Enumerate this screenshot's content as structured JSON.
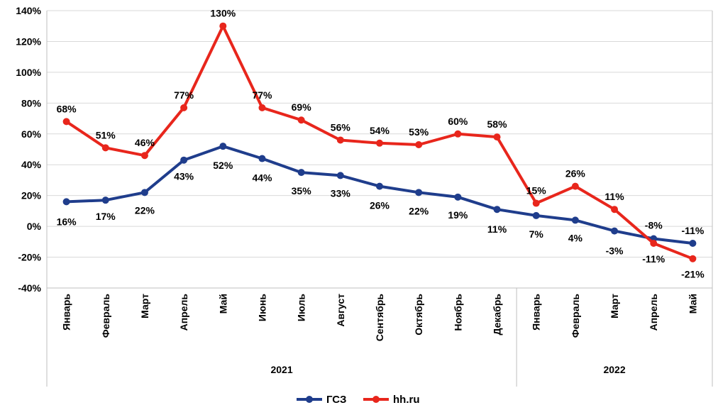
{
  "chart_data": {
    "type": "line",
    "title": "",
    "xlabel": "",
    "ylabel": "",
    "categories": [
      "Январь",
      "Февраль",
      "Март",
      "Апрель",
      "Май",
      "Июнь",
      "Июль",
      "Август",
      "Сентябрь",
      "Октябрь",
      "Ноябрь",
      "Декабрь",
      "Январь",
      "Февраль",
      "Март",
      "Апрель",
      "Май"
    ],
    "groups": [
      {
        "label": "2021",
        "start": 0,
        "end": 11
      },
      {
        "label": "2022",
        "start": 12,
        "end": 16
      }
    ],
    "ylim": [
      -40,
      140
    ],
    "yticks": [
      -40,
      -20,
      0,
      20,
      40,
      60,
      80,
      100,
      120,
      140
    ],
    "ytick_format": "%",
    "grid": true,
    "legend_position": "bottom",
    "series": [
      {
        "name": "ГСЗ",
        "color": "#1f3d8c",
        "values": [
          16,
          17,
          22,
          43,
          52,
          44,
          35,
          33,
          26,
          22,
          19,
          11,
          7,
          4,
          -3,
          -8,
          -11
        ],
        "labels": [
          "16%",
          "17%",
          "22%",
          "43%",
          "52%",
          "44%",
          "35%",
          "33%",
          "26%",
          "22%",
          "19%",
          "11%",
          "7%",
          "4%",
          "-3%",
          "-8%",
          "-11%"
        ]
      },
      {
        "name": "hh.ru",
        "color": "#e8261c",
        "values": [
          68,
          51,
          46,
          77,
          130,
          77,
          69,
          56,
          54,
          53,
          60,
          58,
          15,
          26,
          11,
          -11,
          -21
        ],
        "labels": [
          "68%",
          "51%",
          "46%",
          "77%",
          "130%",
          "77%",
          "69%",
          "56%",
          "54%",
          "53%",
          "60%",
          "58%",
          "15%",
          "26%",
          "11%",
          "-11%",
          "-21%"
        ]
      }
    ]
  }
}
